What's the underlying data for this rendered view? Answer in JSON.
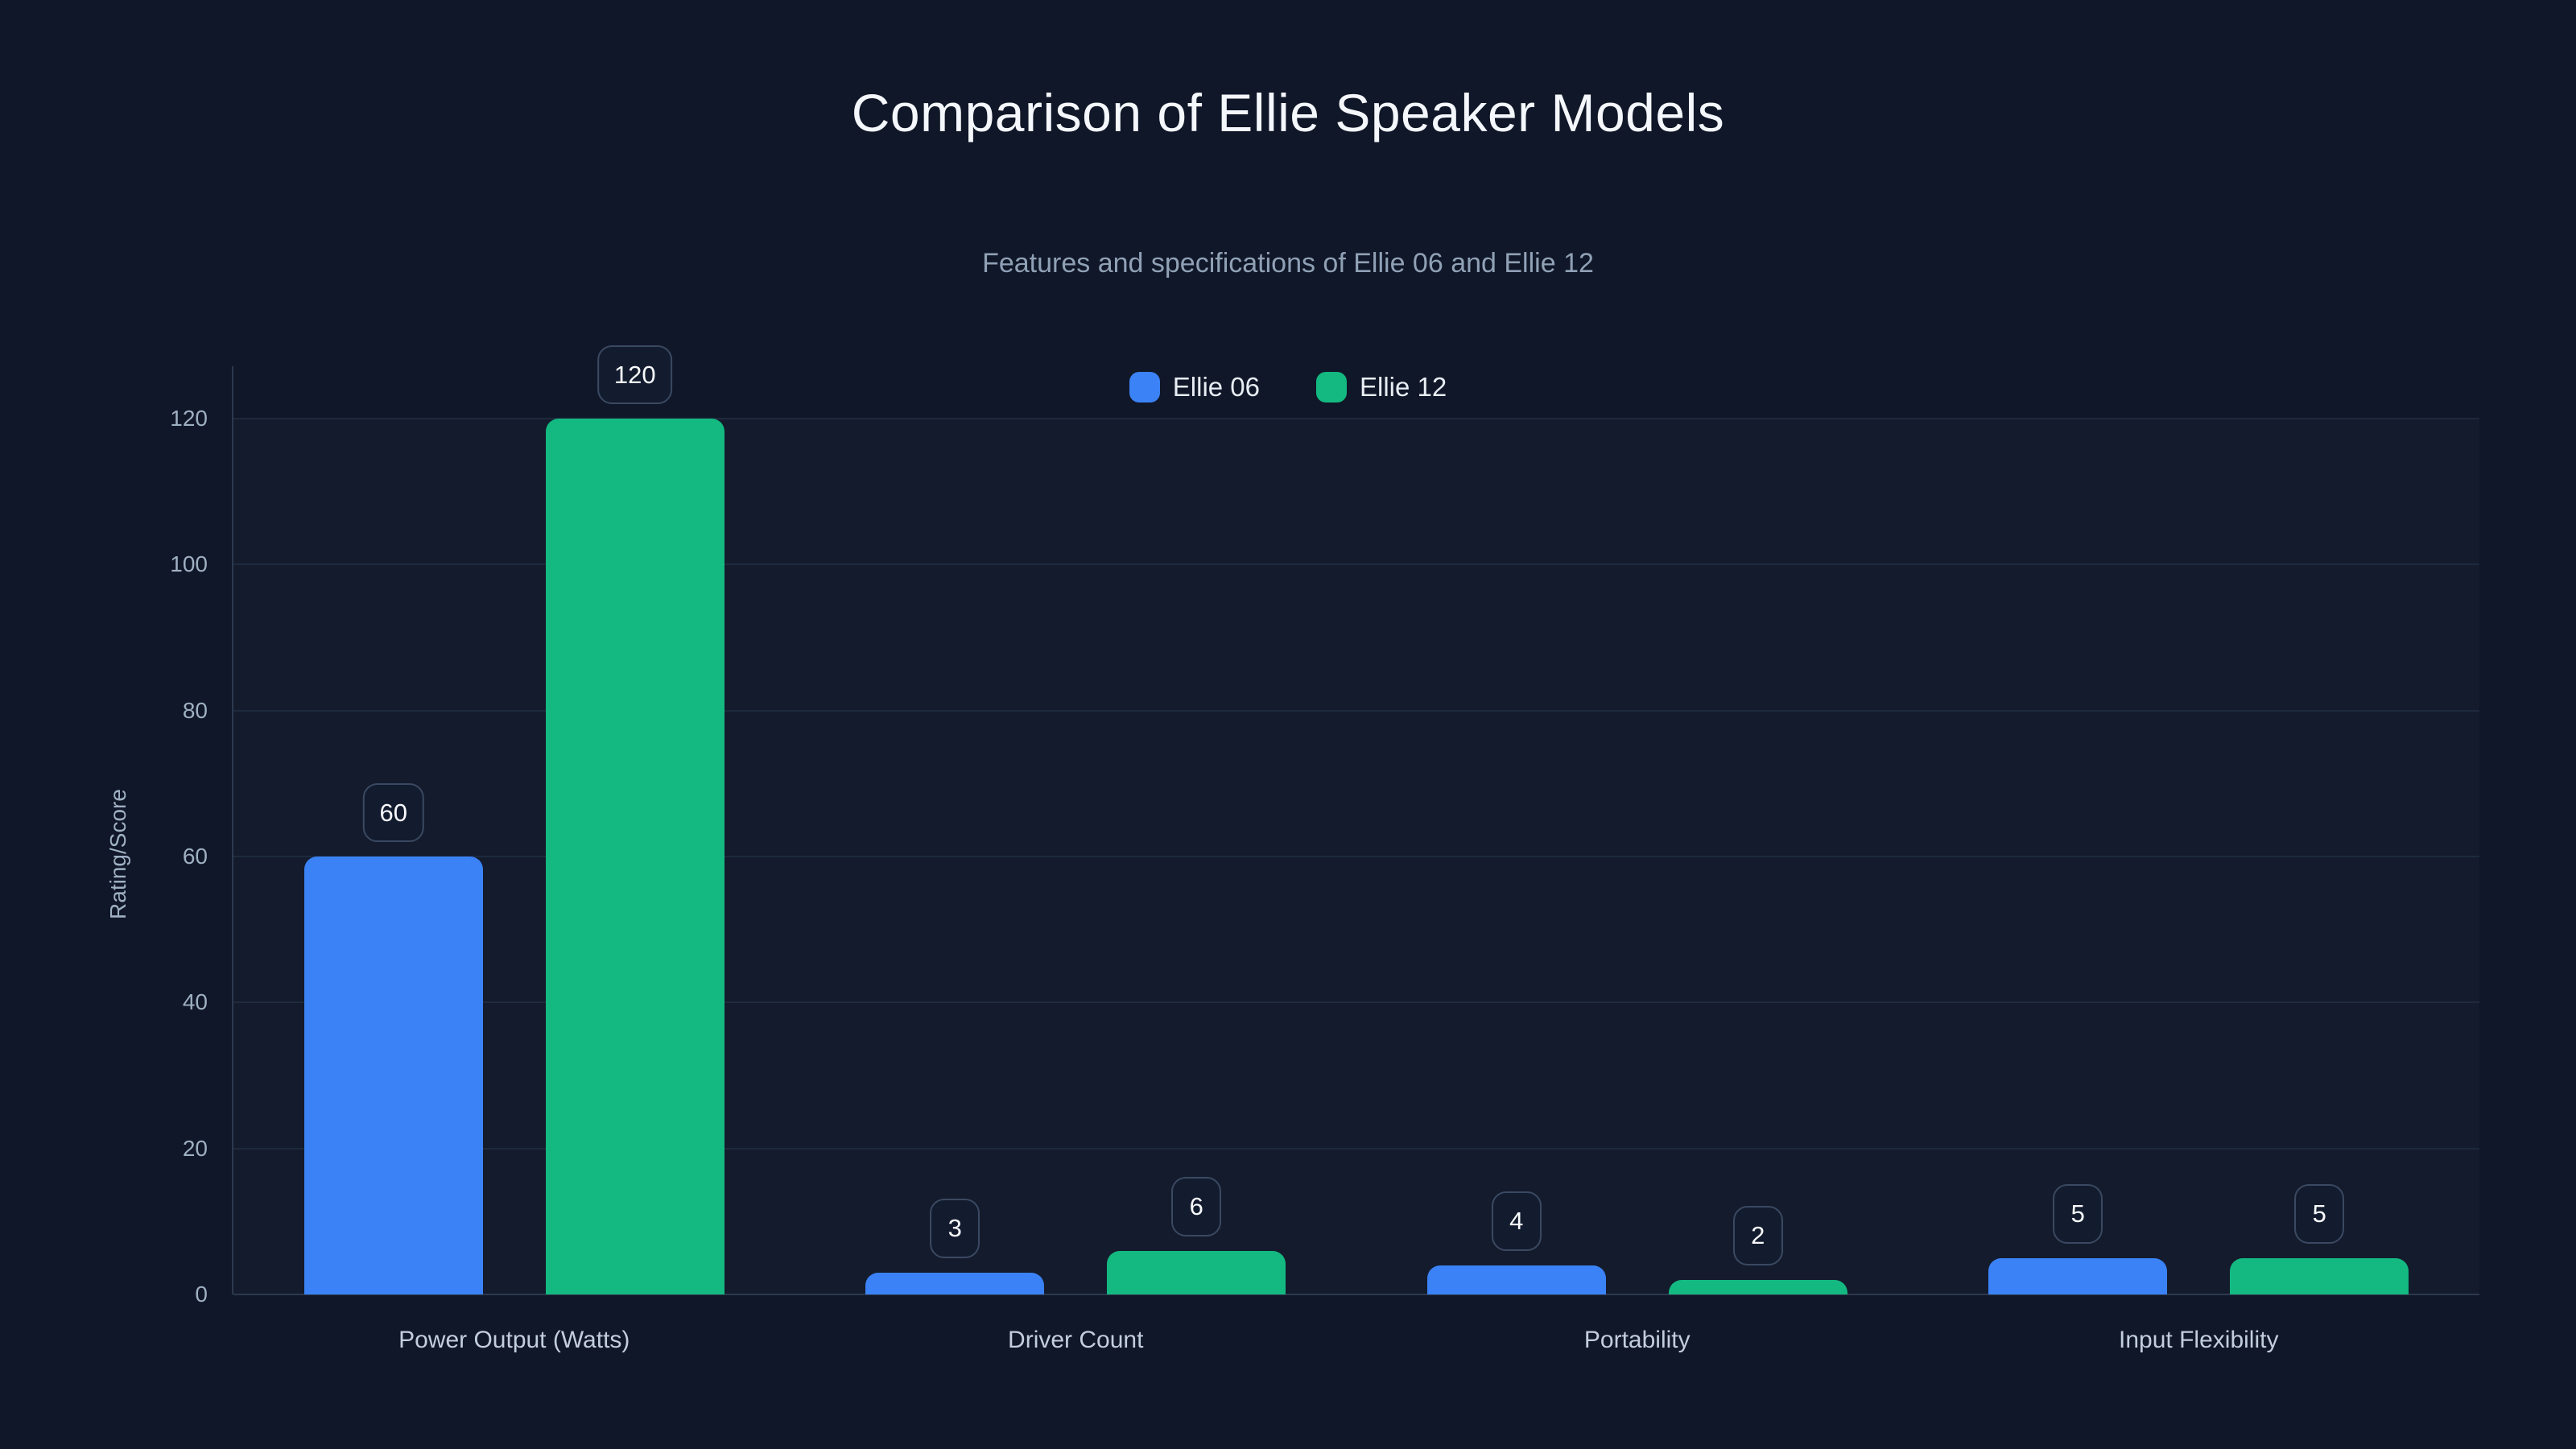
{
  "header": {
    "title": "Comparison of Ellie Speaker Models",
    "subtitle": "Features and specifications of Ellie 06 and Ellie 12"
  },
  "colors": {
    "background": "#101728",
    "series_blue": "#3b82f6",
    "series_green": "#13b981",
    "grid": "#1e2a3e",
    "axis": "#2c394e",
    "tick_text": "#9fb0c3",
    "badge_border": "#3a4961",
    "badge_text": "#f8fafc"
  },
  "legend": {
    "items": [
      {
        "label": "Ellie 06",
        "color": "#3b82f6"
      },
      {
        "label": "Ellie 12",
        "color": "#13b981"
      }
    ]
  },
  "chart_data": {
    "type": "bar",
    "title": "Comparison of Ellie Speaker Models",
    "subtitle": "Features and specifications of Ellie 06 and Ellie 12",
    "categories": [
      "Power Output (Watts)",
      "Driver Count",
      "Portability",
      "Input Flexibility"
    ],
    "series": [
      {
        "name": "Ellie 06",
        "color": "#3b82f6",
        "values": [
          60,
          3,
          4,
          5
        ]
      },
      {
        "name": "Ellie 12",
        "color": "#13b981",
        "values": [
          120,
          6,
          2,
          5
        ]
      }
    ],
    "xlabel": "",
    "ylabel": "Rating/Score",
    "ylim": [
      0,
      120
    ],
    "yticks": [
      0,
      20,
      40,
      60,
      80,
      100,
      120
    ],
    "grid": true,
    "legend_position": "top-center",
    "value_labels": true
  }
}
